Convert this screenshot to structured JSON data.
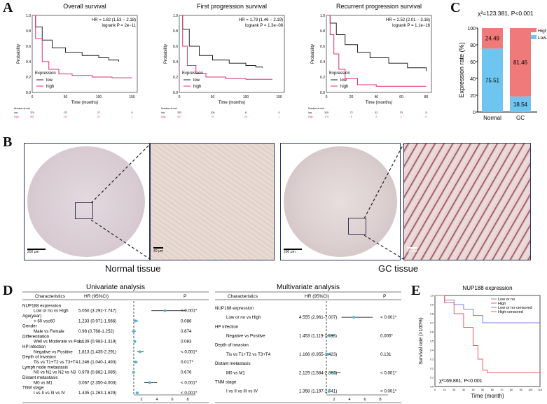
{
  "panel_letters": {
    "a": "A",
    "b": "B",
    "c": "C",
    "d": "D",
    "e": "E"
  },
  "km_plots": [
    {
      "title": "Overall survival",
      "hr": "HR = 1.82 (1.53 − 2.18)",
      "logrank": "logrank P = 2e−11",
      "ylabel": "Probability",
      "xlabel": "Time (months)",
      "xticks": [
        "0",
        "50",
        "100",
        "150"
      ],
      "yticks": [
        "0.0",
        "0.2",
        "0.4",
        "0.6",
        "0.8",
        "1.0"
      ],
      "legend_title": "Expression",
      "legend_low": "low",
      "legend_high": "high",
      "risk_title": "Number at risk",
      "risk_low_label": "low",
      "risk_high_label": "high",
      "risk_low": [
        "374",
        "171",
        "17",
        "0"
      ],
      "risk_high": [
        "501",
        "127",
        "21",
        "1"
      ]
    },
    {
      "title": "First progression survival",
      "hr": "HR = 1.79 (1.46 − 2.19)",
      "logrank": "logrank P = 1.3e−08",
      "ylabel": "Probability",
      "xlabel": "Time (months)",
      "xticks": [
        "0",
        "50",
        "100",
        "150"
      ],
      "yticks": [
        "0.0",
        "0.2",
        "0.4",
        "0.6",
        "0.8",
        "1.0"
      ],
      "legend_title": "Expression",
      "legend_low": "low",
      "legend_high": "high",
      "risk_title": "Number at risk",
      "risk_low_label": "low",
      "risk_high_label": "high",
      "risk_low": [
        "333",
        "106",
        "6",
        "0"
      ],
      "risk_high": [
        "307",
        "76",
        "24",
        "1"
      ]
    },
    {
      "title": "Recurrent progression survival",
      "hr": "HR = 2.52 (2.01 − 3.16)",
      "logrank": "logrank P = 1.1e−16",
      "ylabel": "Probability",
      "xlabel": "Time (months)",
      "xticks": [
        "0",
        "20",
        "40",
        "60",
        "80"
      ],
      "yticks": [
        "0.0",
        "0.2",
        "0.4",
        "0.6",
        "0.8",
        "1.0"
      ],
      "legend_title": "Expression",
      "legend_low": "low",
      "legend_high": "high",
      "risk_title": "Number at risk",
      "risk_low_label": "low",
      "risk_high_label": "high",
      "risk_low": [
        "315",
        "72",
        "32",
        "23",
        "8"
      ],
      "risk_high": [
        "179",
        "5",
        "2",
        "1",
        "0"
      ]
    }
  ],
  "chart_data": [
    {
      "type": "bar",
      "stacked": true,
      "title": "χ²=123.381, P<0.001",
      "ylabel": "Expression rate (%)",
      "categories": [
        "Normal",
        "GC"
      ],
      "ylim": [
        0,
        100
      ],
      "yticks": [
        "0",
        "20",
        "40",
        "60",
        "80",
        "100"
      ],
      "series": [
        {
          "name": "Low or no",
          "values": [
            75.51,
            18.54
          ],
          "color": "#6ec6f0"
        },
        {
          "name": "High",
          "values": [
            24.49,
            81.46
          ],
          "color": "#f07a7a"
        }
      ],
      "legend": "top-right"
    },
    {
      "type": "line",
      "title": "NUP188 expression",
      "ylabel": "Survival rate (×100%)",
      "xlabel": "Time (month)",
      "annotation": "χ²=69.861, P<0.001",
      "xticks": [
        "0",
        "10",
        "20",
        "30",
        "40",
        "50",
        "60",
        "70",
        "80",
        "90",
        "100",
        "110"
      ],
      "yticks": [
        "0.0",
        "0.1",
        "0.2",
        "0.3",
        "0.4",
        "0.5",
        "0.6",
        "0.7",
        "0.8",
        "0.9",
        "1.0"
      ],
      "series": [
        {
          "name": "Low or no",
          "color": "#7b7bf0",
          "x": [
            0,
            10,
            20,
            30,
            40,
            50,
            60,
            70,
            80,
            90,
            100,
            110
          ],
          "y": [
            1.0,
            0.95,
            0.9,
            0.85,
            0.78,
            0.7,
            0.7,
            0.7,
            0.7,
            0.7,
            0.7,
            0.7
          ]
        },
        {
          "name": "High",
          "color": "#f05a5a",
          "x": [
            0,
            10,
            20,
            30,
            40,
            45,
            50,
            55,
            60,
            70,
            80,
            90,
            100,
            110
          ],
          "y": [
            1.0,
            0.92,
            0.8,
            0.65,
            0.45,
            0.3,
            0.18,
            0.15,
            0.15,
            0.15,
            0.15,
            0.15,
            0.15,
            0.15
          ]
        }
      ],
      "extra_legend": [
        "Low or no-censored",
        "High-censored"
      ],
      "legend": "top-right"
    }
  ],
  "ihc": {
    "scale_200": "200 μm",
    "scale_40": "40 μm",
    "normal_caption": "Normal tissue",
    "gc_caption": "GC tissue"
  },
  "uni": {
    "title": "Univariate analysis",
    "col_char": "Characteristics",
    "col_hr": "HR (95%CI)",
    "col_p": "P",
    "rows": [
      {
        "label": "NUP188 expression",
        "hr": "",
        "p": "",
        "indent": 0
      },
      {
        "label": "Low or no vs High",
        "hr": "5.050 (3.292-7.747)",
        "p": "< 0.001*",
        "indent": 1,
        "est": 5.05,
        "lo": 3.292,
        "hi": 7.747
      },
      {
        "label": "Age(year)",
        "hr": "",
        "p": "",
        "indent": 0
      },
      {
        "label": "< 60 vs≥60",
        "hr": "1.233 (0.971-1.566)",
        "p": "0.086",
        "indent": 1,
        "est": 1.233,
        "lo": 0.971,
        "hi": 1.566
      },
      {
        "label": "Gender",
        "hr": "",
        "p": "",
        "indent": 0
      },
      {
        "label": "Male vs Female",
        "hr": "0.98 (0.768-1.252)",
        "p": "0.874",
        "indent": 1,
        "est": 0.98,
        "lo": 0.768,
        "hi": 1.252
      },
      {
        "label": "Differentiation",
        "hr": "",
        "p": "",
        "indent": 0
      },
      {
        "label": "Well vs Moderate vs Poor",
        "hr": "1.139 (0.983-1.319)",
        "p": "0.083",
        "indent": 1,
        "est": 1.139,
        "lo": 0.983,
        "hi": 1.319
      },
      {
        "label": "HP infection",
        "hr": "",
        "p": "",
        "indent": 0
      },
      {
        "label": "Negative vs Positive",
        "hr": "1.813 (1.435-2.291)",
        "p": "< 0.001*",
        "indent": 1,
        "est": 1.813,
        "lo": 1.435,
        "hi": 2.291
      },
      {
        "label": "Depth of invasion",
        "hr": "",
        "p": "",
        "indent": 0
      },
      {
        "label": "Tis vs T1+T2 vs T3+T4",
        "hr": "1.246 (1.040-1.493)",
        "p": "0.017*",
        "indent": 1,
        "est": 1.246,
        "lo": 1.04,
        "hi": 1.493
      },
      {
        "label": "Lymph node metastasis",
        "hr": "",
        "p": "",
        "indent": 0
      },
      {
        "label": "N0 vs N1 vs N2 vs N3",
        "hr": "0.978 (0.882-1.085)",
        "p": "0.676",
        "indent": 1,
        "est": 0.978,
        "lo": 0.882,
        "hi": 1.085
      },
      {
        "label": "Distant metastasis",
        "hr": "",
        "p": "",
        "indent": 0
      },
      {
        "label": "M0 vs M1",
        "hr": "3.067 (2.350-4.003)",
        "p": "< 0.001*",
        "indent": 1,
        "est": 3.067,
        "lo": 2.35,
        "hi": 4.003
      },
      {
        "label": "TNM stage",
        "hr": "",
        "p": "",
        "indent": 0
      },
      {
        "label": "I vs II vs III vs IV",
        "hr": "1.435 (1.263-1.629)",
        "p": "< 0.001*",
        "indent": 1,
        "est": 1.435,
        "lo": 1.263,
        "hi": 1.629
      }
    ],
    "axis": [
      "2",
      "4",
      "6",
      "8"
    ]
  },
  "multi": {
    "title": "Multivariate analysis",
    "col_char": "Characteristics",
    "col_hr": "HR (95%CI)",
    "col_p": "P",
    "rows": [
      {
        "label": "NUP188 expression",
        "hr": "",
        "p": "",
        "indent": 0
      },
      {
        "label": "Low or no vs High",
        "hr": "4.555 (2.961-7.007)",
        "p": "< 0.001*",
        "indent": 1,
        "est": 4.555,
        "lo": 2.961,
        "hi": 7.007
      },
      {
        "label": "HP infection",
        "hr": "",
        "p": "",
        "indent": 0
      },
      {
        "label": "Negative vs Positive",
        "hr": "1.453 (1.119-1.888)",
        "p": "0.005*",
        "indent": 1,
        "est": 1.453,
        "lo": 1.119,
        "hi": 1.888
      },
      {
        "label": "Depth of invasion",
        "hr": "",
        "p": "",
        "indent": 0
      },
      {
        "label": "Tis vs T1+T2 vs T3+T4",
        "hr": "1.166 (0.955-1.423)",
        "p": "0.131",
        "indent": 1,
        "est": 1.166,
        "lo": 0.955,
        "hi": 1.423
      },
      {
        "label": "Distant metastasis",
        "hr": "",
        "p": "",
        "indent": 0
      },
      {
        "label": "M0 vs M1",
        "hr": "2.129 (1.584-2.862)",
        "p": "< 0.001*",
        "indent": 1,
        "est": 2.129,
        "lo": 1.584,
        "hi": 2.862
      },
      {
        "label": "TNM stage",
        "hr": "",
        "p": "",
        "indent": 0
      },
      {
        "label": "I vs II vs III vs IV",
        "hr": "1.358 (1.197-1.541)",
        "p": "< 0.001*",
        "indent": 1,
        "est": 1.358,
        "lo": 1.197,
        "hi": 1.541
      }
    ],
    "axis": [
      "2",
      "4",
      "6",
      "8"
    ]
  }
}
